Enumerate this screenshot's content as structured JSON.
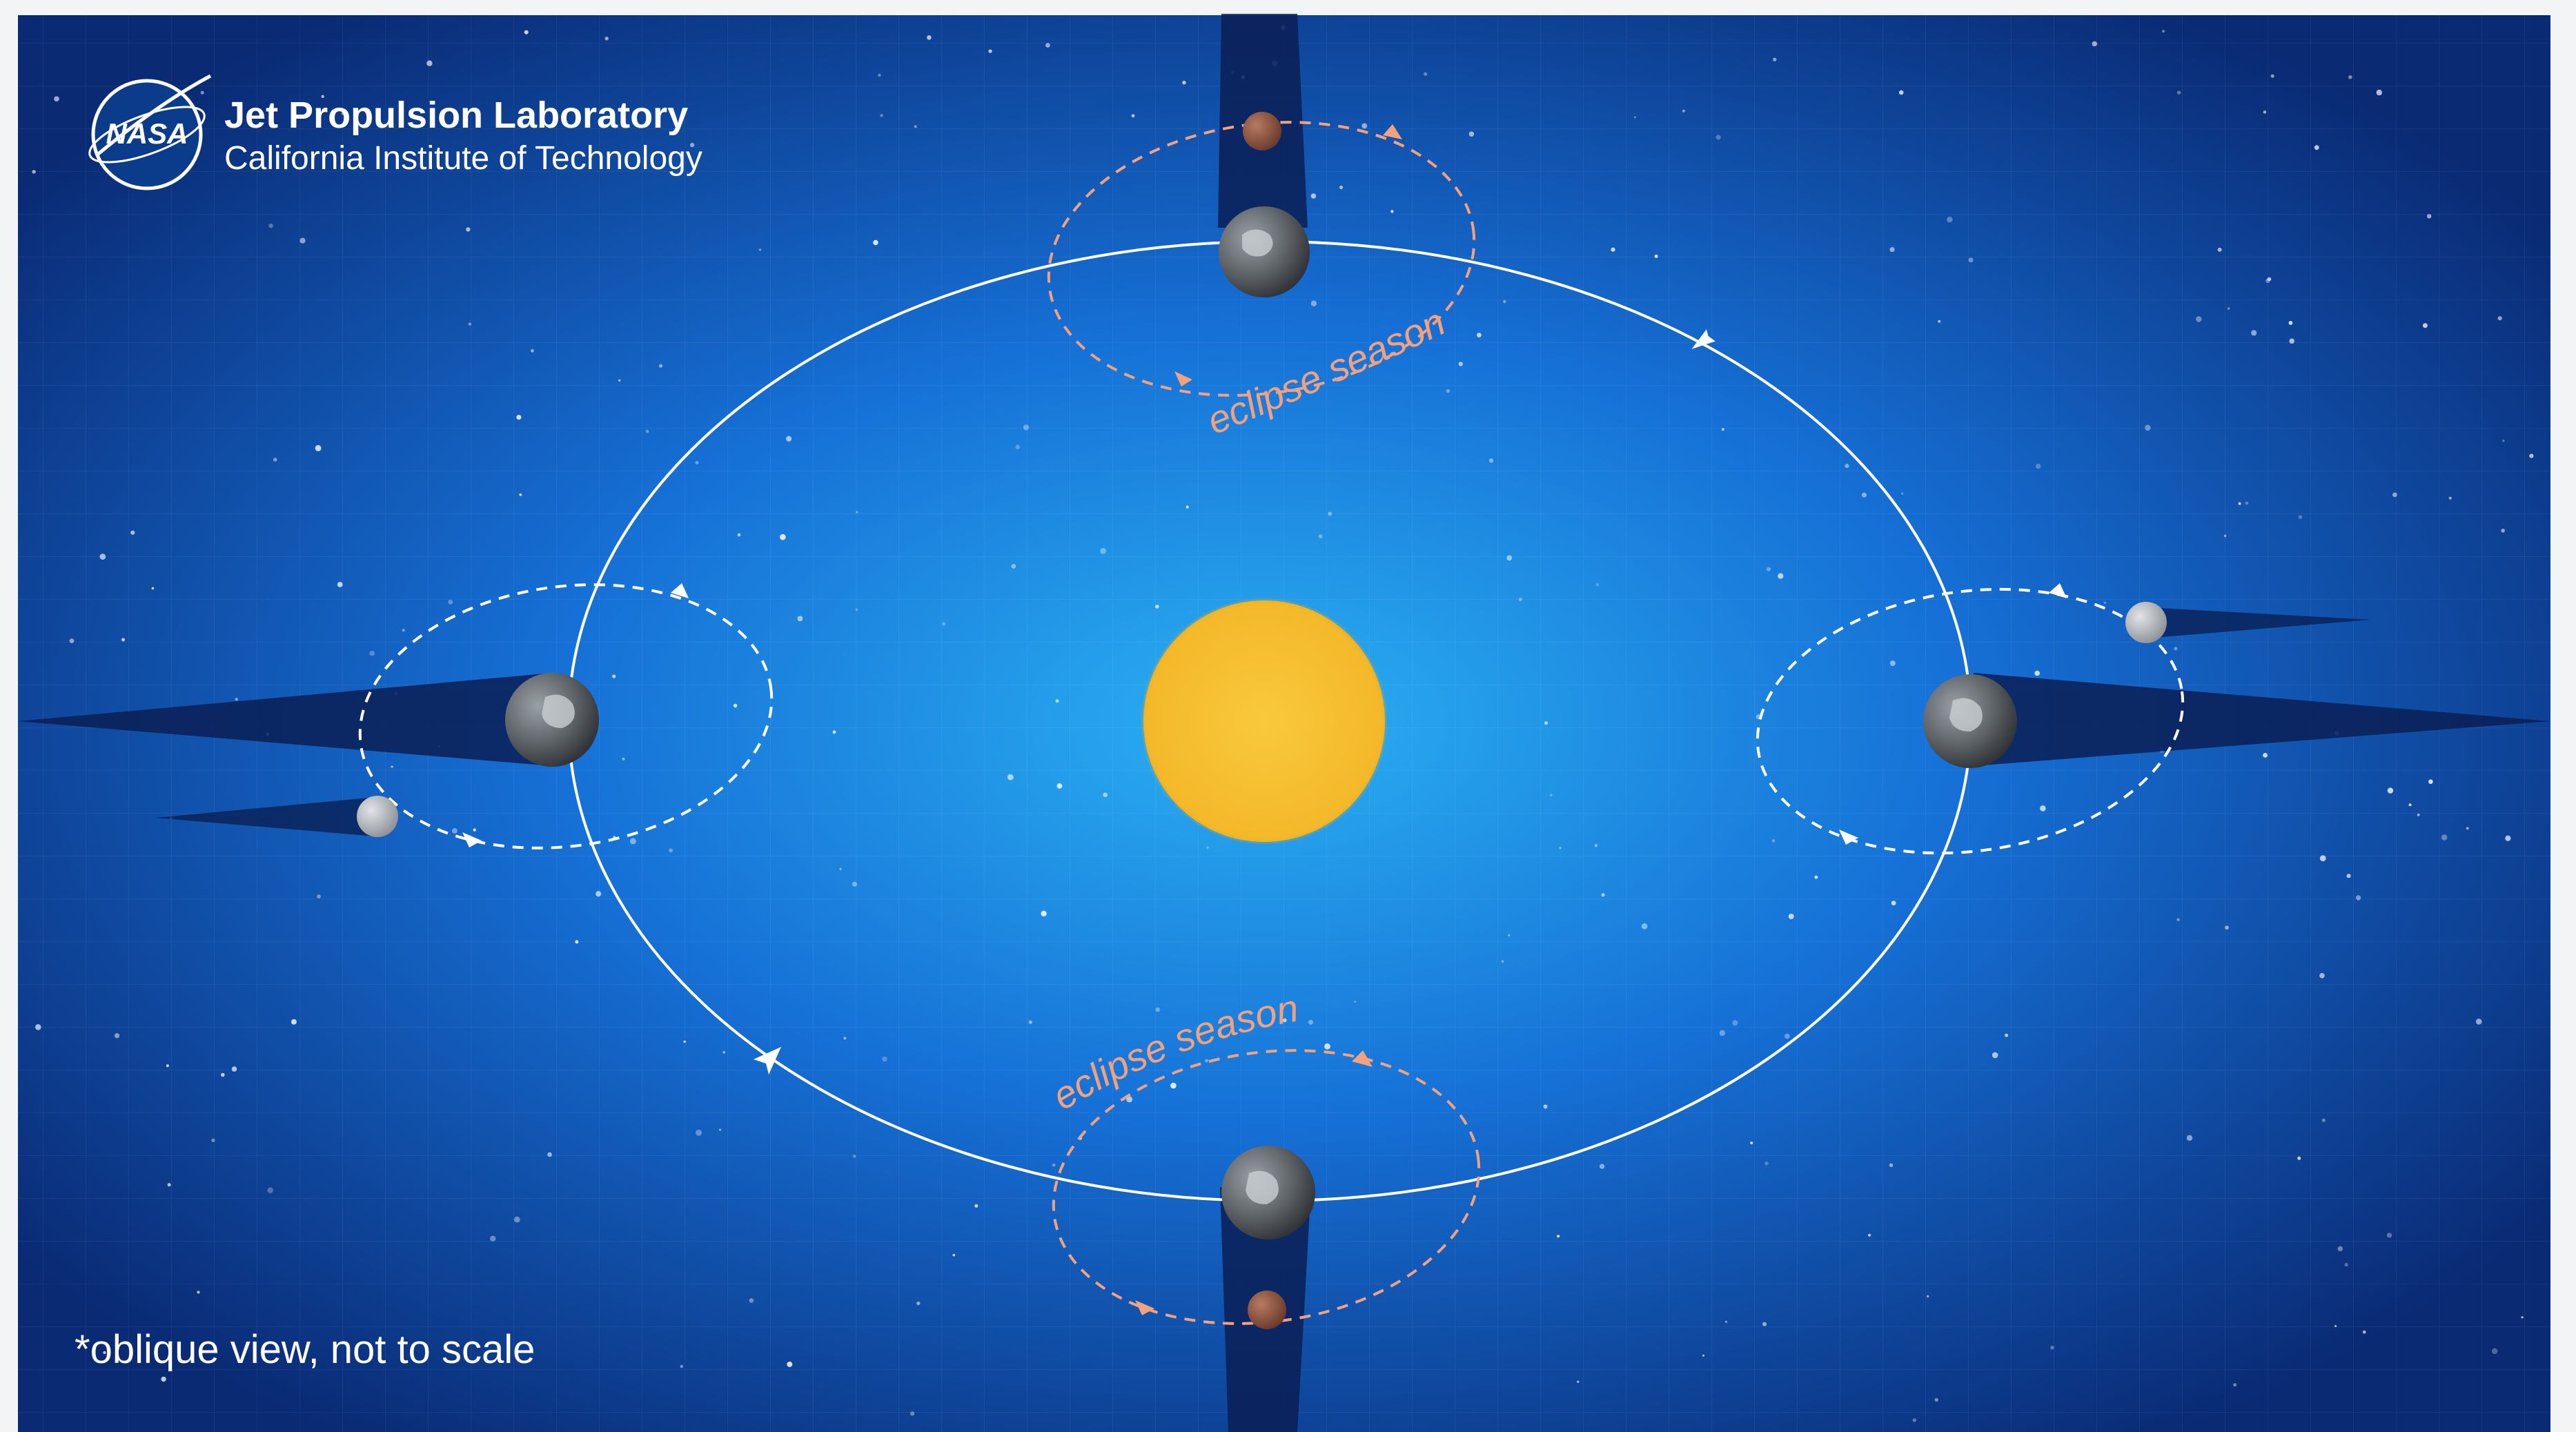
{
  "logo": {
    "agency": "NASA",
    "title": "Jet Propulsion Laboratory",
    "subtitle": "California Institute of Technology"
  },
  "labels": {
    "eclipse_top": "eclipse season",
    "eclipse_bottom": "eclipse season",
    "footnote": "*oblique view, not to scale"
  },
  "colors": {
    "bg_center": "#2aa6ee",
    "bg_mid": "#1466cf",
    "bg_edge": "#0b2c78",
    "sun": "#f7c230",
    "orbit": "#ffffff",
    "eclipse_orbit": "#f2a27e",
    "earth": "#6b6f73",
    "moon": "#b8bcc2",
    "moon_eclipsed": "#9a5a45",
    "shadow": "#0a1f55"
  },
  "icons": [
    "nasa-logo-icon",
    "sun-icon",
    "earth-icon",
    "moon-icon",
    "orbit-arrow-icon"
  ]
}
